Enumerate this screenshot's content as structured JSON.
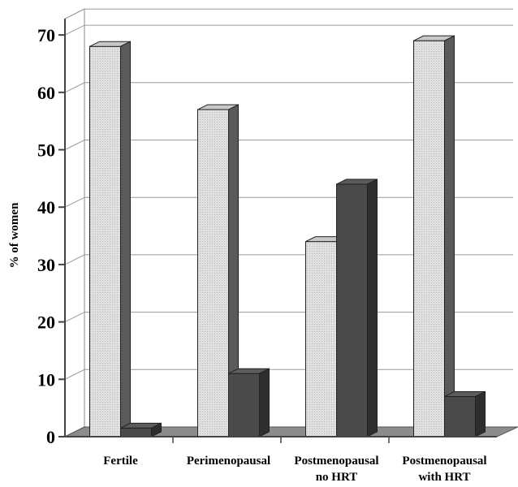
{
  "chart_data": {
    "type": "bar",
    "style": "3d",
    "ylabel": "% of women",
    "xlabel": "",
    "title": "",
    "ylim": [
      0,
      70
    ],
    "yticks": [
      0,
      10,
      20,
      30,
      40,
      50,
      60,
      70
    ],
    "grid": true,
    "legend": "none",
    "categories": [
      [
        "Fertile"
      ],
      [
        "Perimenopausal"
      ],
      [
        "Postmenopausal",
        "no HRT"
      ],
      [
        "Postmenopausal",
        "with HRT"
      ]
    ],
    "series": [
      {
        "color": "#dcdcdc",
        "values": [
          68,
          57,
          34,
          69
        ]
      },
      {
        "color": "#4a4a4a",
        "values": [
          1.5,
          11,
          44,
          7
        ]
      }
    ]
  }
}
